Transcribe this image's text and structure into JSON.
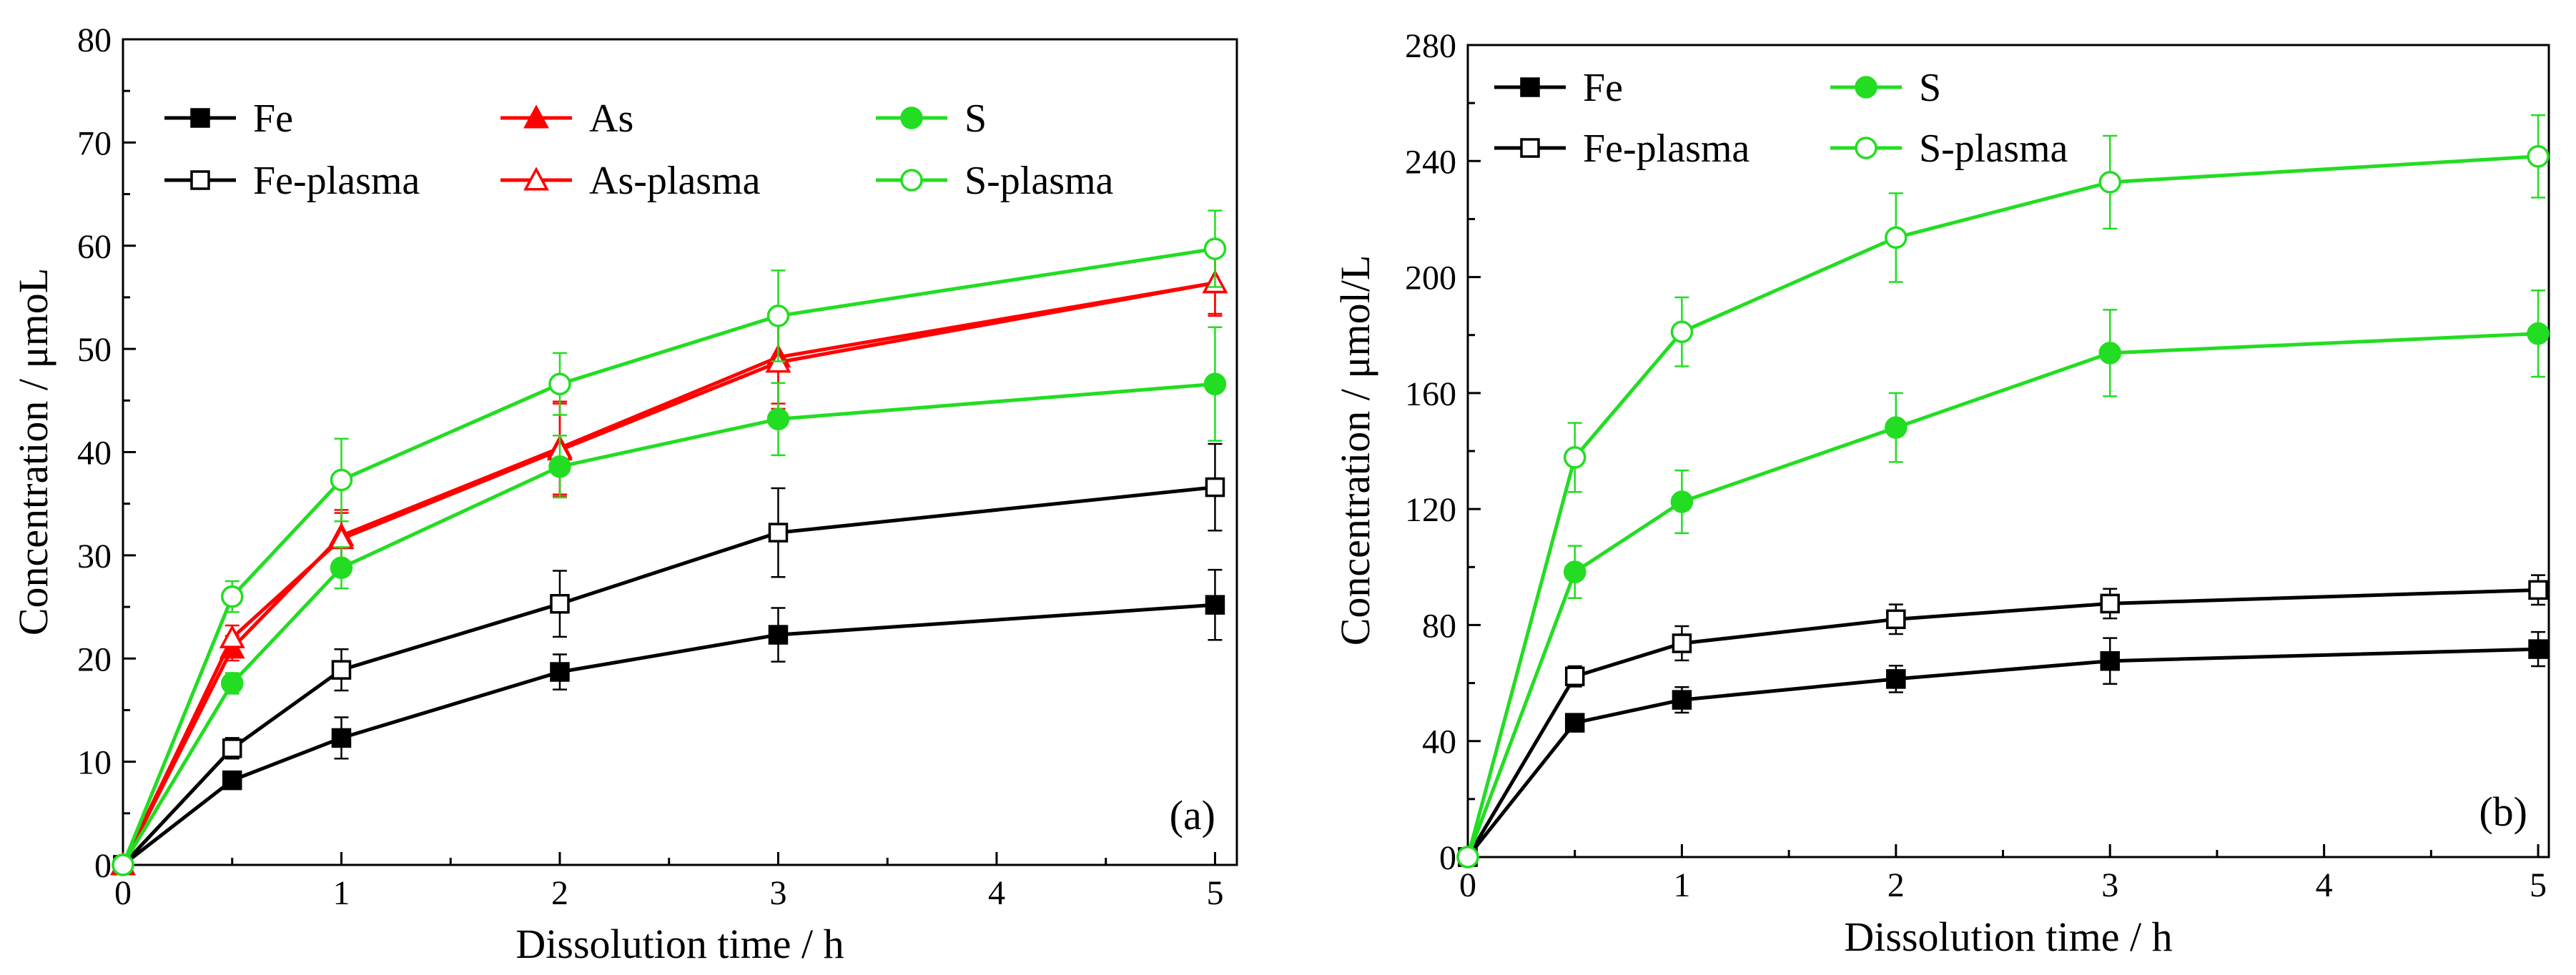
{
  "chart_data": [
    {
      "type": "line",
      "panel_label": "(a)",
      "xlabel": "Dissolution time / h",
      "ylabel": "Concentration / μmoL",
      "xlim": [
        0,
        5.1
      ],
      "ylim": [
        0,
        80
      ],
      "xticks": [
        0,
        1,
        2,
        3,
        4,
        5
      ],
      "yticks": [
        0,
        10,
        20,
        30,
        40,
        50,
        60,
        70,
        80
      ],
      "legend_position": "top",
      "series": [
        {
          "name": "Fe",
          "color": "#000000",
          "marker": "square",
          "filled": true,
          "x": [
            0,
            0.5,
            1,
            2,
            3,
            5
          ],
          "y": [
            0,
            8.2,
            12.3,
            18.7,
            22.3,
            25.2
          ],
          "err": [
            0,
            0.8,
            2.0,
            1.7,
            2.6,
            3.4
          ]
        },
        {
          "name": "Fe-plasma",
          "color": "#000000",
          "marker": "square",
          "filled": false,
          "x": [
            0,
            0.5,
            1,
            2,
            3,
            5
          ],
          "y": [
            0,
            11.3,
            18.9,
            25.3,
            32.2,
            36.6
          ],
          "err": [
            0,
            1.0,
            2.0,
            3.2,
            4.3,
            4.2
          ]
        },
        {
          "name": "As",
          "color": "#ff0000",
          "marker": "triangle",
          "filled": true,
          "x": [
            0,
            0.5,
            1,
            2,
            3,
            5
          ],
          "y": [
            0,
            21.0,
            31.9,
            40.4,
            49.2,
            56.4
          ],
          "err": [
            0,
            1.2,
            2.5,
            4.5,
            4.5,
            3.0
          ]
        },
        {
          "name": "As-plasma",
          "color": "#ff0000",
          "marker": "triangle",
          "filled": false,
          "x": [
            0,
            0.5,
            1,
            2,
            3,
            5
          ],
          "y": [
            0,
            22.0,
            31.6,
            40.2,
            48.7,
            56.4
          ],
          "err": [
            0,
            1.2,
            2.5,
            4.5,
            4.5,
            3.2
          ]
        },
        {
          "name": "S",
          "color": "#22dd22",
          "marker": "circle",
          "filled": true,
          "x": [
            0,
            0.5,
            1,
            2,
            3,
            5
          ],
          "y": [
            0,
            17.6,
            28.8,
            38.6,
            43.2,
            46.6
          ],
          "err": [
            0,
            1.0,
            2.0,
            3.0,
            3.5,
            5.5
          ]
        },
        {
          "name": "S-plasma",
          "color": "#22dd22",
          "marker": "circle",
          "filled": false,
          "x": [
            0,
            0.5,
            1,
            2,
            3,
            5
          ],
          "y": [
            0,
            26.0,
            37.3,
            46.6,
            53.2,
            59.7
          ],
          "err": [
            0,
            1.5,
            4.0,
            3.0,
            4.4,
            3.7
          ]
        }
      ],
      "legend_order": [
        [
          "Fe",
          "As",
          "S"
        ],
        [
          "Fe-plasma",
          "As-plasma",
          "S-plasma"
        ]
      ]
    },
    {
      "type": "line",
      "panel_label": "(b)",
      "xlabel": "Dissolution time / h",
      "ylabel": "Concentration / μmol/L",
      "xlim": [
        0,
        5.05
      ],
      "ylim": [
        0,
        280
      ],
      "xticks": [
        0,
        1,
        2,
        3,
        4,
        5
      ],
      "yticks": [
        0,
        40,
        80,
        120,
        160,
        200,
        240,
        280
      ],
      "legend_position": "top",
      "series": [
        {
          "name": "Fe",
          "color": "#000000",
          "marker": "square",
          "filled": true,
          "x": [
            0,
            0.5,
            1,
            2,
            3,
            5
          ],
          "y": [
            0,
            46.3,
            54.2,
            61.4,
            67.6,
            71.7
          ],
          "err": [
            0,
            2.0,
            4.4,
            4.6,
            7.9,
            5.9
          ]
        },
        {
          "name": "Fe-plasma",
          "color": "#000000",
          "marker": "square",
          "filled": false,
          "x": [
            0,
            0.5,
            1,
            2,
            3,
            5
          ],
          "y": [
            0,
            62.3,
            73.7,
            82.0,
            87.4,
            92.1
          ],
          "err": [
            0,
            3.5,
            5.9,
            5.1,
            5.1,
            5.1
          ]
        },
        {
          "name": "S",
          "color": "#22dd22",
          "marker": "circle",
          "filled": true,
          "x": [
            0,
            0.5,
            1,
            2,
            3,
            5
          ],
          "y": [
            0,
            98.3,
            122.5,
            148.1,
            173.8,
            180.5
          ],
          "err": [
            0,
            9.0,
            10.8,
            11.9,
            14.9,
            14.9
          ]
        },
        {
          "name": "S-plasma",
          "color": "#22dd22",
          "marker": "circle",
          "filled": false,
          "x": [
            0,
            0.5,
            1,
            2,
            3,
            5
          ],
          "y": [
            0,
            137.8,
            181.1,
            213.6,
            232.7,
            241.6
          ],
          "err": [
            0,
            11.9,
            11.9,
            15.3,
            16.0,
            14.2
          ]
        }
      ],
      "legend_order": [
        [
          "Fe",
          "S"
        ],
        [
          "Fe-plasma",
          "S-plasma"
        ]
      ]
    }
  ]
}
